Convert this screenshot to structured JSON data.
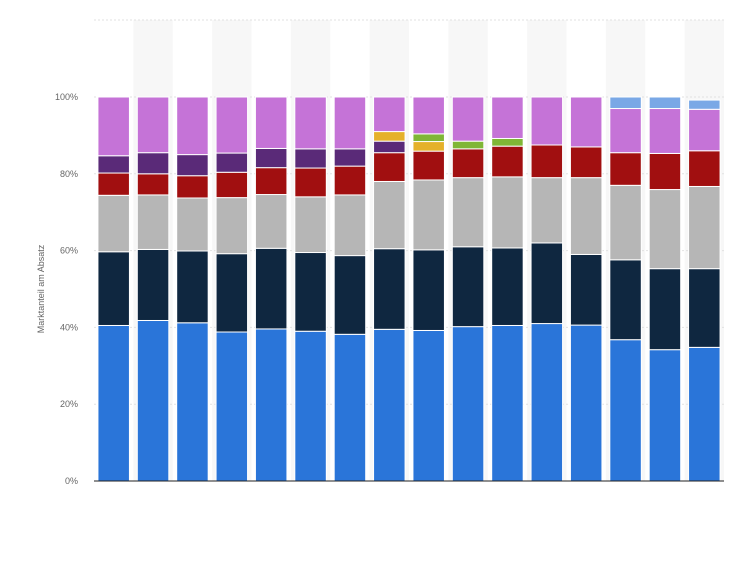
{
  "chart_data": {
    "type": "bar",
    "stacked": true,
    "ylabel": "Marktanteil am Absatz",
    "y_ticks": [
      "0%",
      "20%",
      "40%",
      "60%",
      "80%",
      "100%"
    ],
    "ylim": [
      0,
      100
    ],
    "grid": true,
    "colors": [
      "#2a75d9",
      "#0f2740",
      "#b6b6b6",
      "#a10f10",
      "#5a2a78",
      "#e5b12a",
      "#7fb635",
      "#c573d7",
      "#7aa8e6"
    ],
    "series": [
      {
        "values": [
          40.5,
          41.8,
          41.2,
          38.8,
          39.6,
          39.0,
          38.2,
          39.5,
          39.2,
          40.2,
          40.5,
          41.0,
          40.6,
          36.8,
          34.2,
          34.8
        ]
      },
      {
        "values": [
          19.2,
          18.5,
          18.7,
          20.4,
          21.0,
          20.5,
          20.5,
          21.0,
          21.0,
          20.8,
          20.2,
          21.0,
          18.4,
          20.8,
          21.1,
          20.5
        ]
      },
      {
        "values": [
          14.7,
          14.2,
          13.8,
          14.6,
          14.0,
          14.5,
          15.8,
          17.5,
          18.2,
          18.0,
          18.5,
          17.0,
          20.0,
          19.4,
          20.6,
          21.4
        ]
      },
      {
        "values": [
          5.8,
          5.5,
          5.8,
          6.6,
          7.0,
          7.5,
          7.5,
          7.5,
          7.5,
          7.5,
          8.0,
          8.5,
          8.0,
          8.5,
          9.4,
          9.3
        ]
      },
      {
        "values": [
          4.5,
          5.5,
          5.5,
          5.0,
          5.0,
          5.0,
          4.5,
          3.0,
          0,
          0,
          0,
          0,
          0,
          0,
          0,
          0
        ]
      },
      {
        "values": [
          0,
          0,
          0,
          0,
          0,
          0,
          0,
          2.5,
          2.5,
          0,
          0,
          0,
          0,
          0,
          0,
          0
        ]
      },
      {
        "values": [
          0,
          0,
          0,
          0,
          0,
          0,
          0,
          0,
          2.0,
          2.0,
          2.0,
          0,
          0,
          0,
          0,
          0
        ]
      },
      {
        "values": [
          15.3,
          14.5,
          15.0,
          14.6,
          13.4,
          13.5,
          13.5,
          9.0,
          9.6,
          11.5,
          10.8,
          12.5,
          13.0,
          11.5,
          11.7,
          10.8
        ]
      },
      {
        "values": [
          0,
          0,
          0,
          0,
          0,
          0,
          0,
          0,
          0,
          0,
          0,
          0,
          0,
          3.0,
          3.0,
          2.4
        ]
      }
    ]
  }
}
